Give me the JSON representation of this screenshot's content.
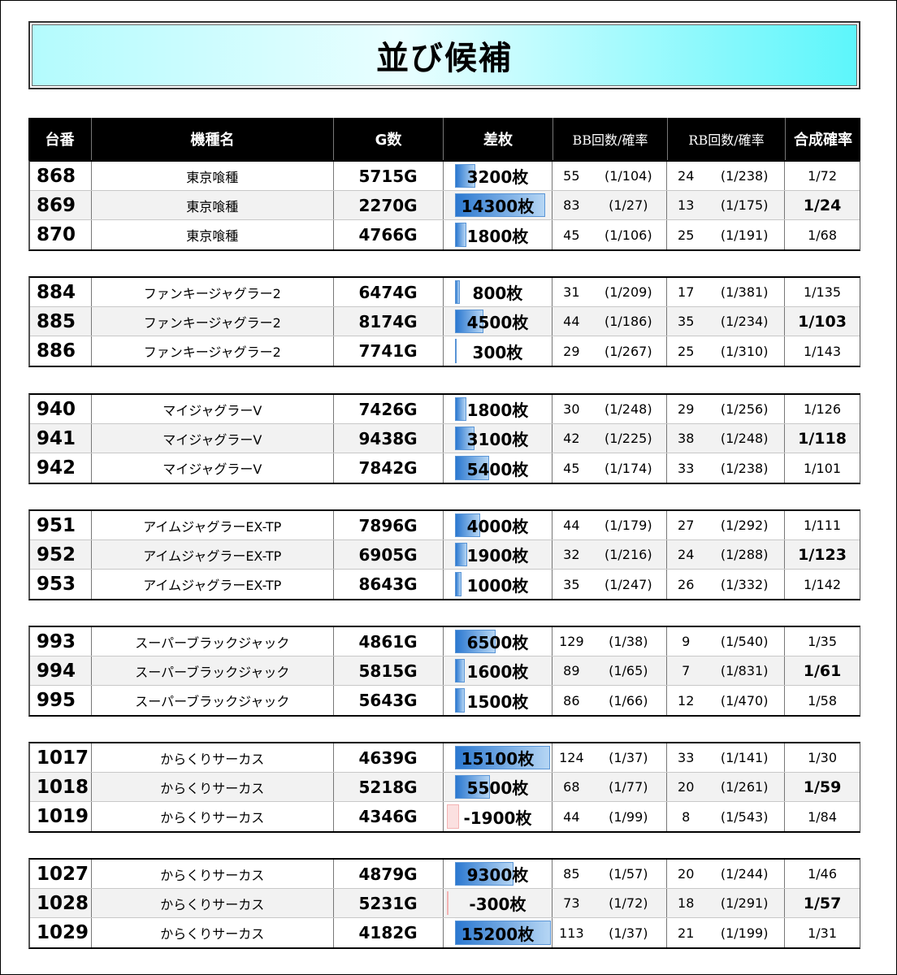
{
  "title": "並び候補",
  "headers": {
    "no": "台番",
    "name": "機種名",
    "games": "G数",
    "diff": "差枚",
    "bb": "BB回数/確率",
    "rb": "RB回数/確率",
    "total": "合成確率"
  },
  "groups": [
    {
      "rows": [
        {
          "no": "868",
          "name": "東京喰種",
          "games": "5715G",
          "diff": "3200枚",
          "diff_value": 3200,
          "bb": "55",
          "bb_prob": "(1/104)",
          "rb": "24",
          "rb_prob": "(1/238)",
          "total": "1/72"
        },
        {
          "no": "869",
          "name": "東京喰種",
          "games": "2270G",
          "diff": "14300枚",
          "diff_value": 14300,
          "bb": "83",
          "bb_prob": "(1/27)",
          "rb": "13",
          "rb_prob": "(1/175)",
          "total": "1/24"
        },
        {
          "no": "870",
          "name": "東京喰種",
          "games": "4766G",
          "diff": "1800枚",
          "diff_value": 1800,
          "bb": "45",
          "bb_prob": "(1/106)",
          "rb": "25",
          "rb_prob": "(1/191)",
          "total": "1/68"
        }
      ]
    },
    {
      "rows": [
        {
          "no": "884",
          "name": "ファンキージャグラー2",
          "games": "6474G",
          "diff": "800枚",
          "diff_value": 800,
          "bb": "31",
          "bb_prob": "(1/209)",
          "rb": "17",
          "rb_prob": "(1/381)",
          "total": "1/135"
        },
        {
          "no": "885",
          "name": "ファンキージャグラー2",
          "games": "8174G",
          "diff": "4500枚",
          "diff_value": 4500,
          "bb": "44",
          "bb_prob": "(1/186)",
          "rb": "35",
          "rb_prob": "(1/234)",
          "total": "1/103"
        },
        {
          "no": "886",
          "name": "ファンキージャグラー2",
          "games": "7741G",
          "diff": "300枚",
          "diff_value": 300,
          "bb": "29",
          "bb_prob": "(1/267)",
          "rb": "25",
          "rb_prob": "(1/310)",
          "total": "1/143"
        }
      ]
    },
    {
      "rows": [
        {
          "no": "940",
          "name": "マイジャグラーV",
          "games": "7426G",
          "diff": "1800枚",
          "diff_value": 1800,
          "bb": "30",
          "bb_prob": "(1/248)",
          "rb": "29",
          "rb_prob": "(1/256)",
          "total": "1/126"
        },
        {
          "no": "941",
          "name": "マイジャグラーV",
          "games": "9438G",
          "diff": "3100枚",
          "diff_value": 3100,
          "bb": "42",
          "bb_prob": "(1/225)",
          "rb": "38",
          "rb_prob": "(1/248)",
          "total": "1/118"
        },
        {
          "no": "942",
          "name": "マイジャグラーV",
          "games": "7842G",
          "diff": "5400枚",
          "diff_value": 5400,
          "bb": "45",
          "bb_prob": "(1/174)",
          "rb": "33",
          "rb_prob": "(1/238)",
          "total": "1/101"
        }
      ]
    },
    {
      "rows": [
        {
          "no": "951",
          "name": "アイムジャグラーEX-TP",
          "games": "7896G",
          "diff": "4000枚",
          "diff_value": 4000,
          "bb": "44",
          "bb_prob": "(1/179)",
          "rb": "27",
          "rb_prob": "(1/292)",
          "total": "1/111"
        },
        {
          "no": "952",
          "name": "アイムジャグラーEX-TP",
          "games": "6905G",
          "diff": "1900枚",
          "diff_value": 1900,
          "bb": "32",
          "bb_prob": "(1/216)",
          "rb": "24",
          "rb_prob": "(1/288)",
          "total": "1/123"
        },
        {
          "no": "953",
          "name": "アイムジャグラーEX-TP",
          "games": "8643G",
          "diff": "1000枚",
          "diff_value": 1000,
          "bb": "35",
          "bb_prob": "(1/247)",
          "rb": "26",
          "rb_prob": "(1/332)",
          "total": "1/142"
        }
      ]
    },
    {
      "rows": [
        {
          "no": "993",
          "name": "スーパーブラックジャック",
          "games": "4861G",
          "diff": "6500枚",
          "diff_value": 6500,
          "bb": "129",
          "bb_prob": "(1/38)",
          "rb": "9",
          "rb_prob": "(1/540)",
          "total": "1/35"
        },
        {
          "no": "994",
          "name": "スーパーブラックジャック",
          "games": "5815G",
          "diff": "1600枚",
          "diff_value": 1600,
          "bb": "89",
          "bb_prob": "(1/65)",
          "rb": "7",
          "rb_prob": "(1/831)",
          "total": "1/61"
        },
        {
          "no": "995",
          "name": "スーパーブラックジャック",
          "games": "5643G",
          "diff": "1500枚",
          "diff_value": 1500,
          "bb": "86",
          "bb_prob": "(1/66)",
          "rb": "12",
          "rb_prob": "(1/470)",
          "total": "1/58"
        }
      ]
    },
    {
      "rows": [
        {
          "no": "1017",
          "name": "からくりサーカス",
          "games": "4639G",
          "diff": "15100枚",
          "diff_value": 15100,
          "bb": "124",
          "bb_prob": "(1/37)",
          "rb": "33",
          "rb_prob": "(1/141)",
          "total": "1/30"
        },
        {
          "no": "1018",
          "name": "からくりサーカス",
          "games": "5218G",
          "diff": "5500枚",
          "diff_value": 5500,
          "bb": "68",
          "bb_prob": "(1/77)",
          "rb": "20",
          "rb_prob": "(1/261)",
          "total": "1/59"
        },
        {
          "no": "1019",
          "name": "からくりサーカス",
          "games": "4346G",
          "diff": "-1900枚",
          "diff_value": -1900,
          "bb": "44",
          "bb_prob": "(1/99)",
          "rb": "8",
          "rb_prob": "(1/543)",
          "total": "1/84"
        }
      ]
    },
    {
      "rows": [
        {
          "no": "1027",
          "name": "からくりサーカス",
          "games": "4879G",
          "diff": "9300枚",
          "diff_value": 9300,
          "bb": "85",
          "bb_prob": "(1/57)",
          "rb": "20",
          "rb_prob": "(1/244)",
          "total": "1/46"
        },
        {
          "no": "1028",
          "name": "からくりサーカス",
          "games": "5231G",
          "diff": "-300枚",
          "diff_value": -300,
          "bb": "73",
          "bb_prob": "(1/72)",
          "rb": "18",
          "rb_prob": "(1/291)",
          "total": "1/57"
        },
        {
          "no": "1029",
          "name": "からくりサーカス",
          "games": "4182G",
          "diff": "15200枚",
          "diff_value": 15200,
          "bb": "113",
          "bb_prob": "(1/37)",
          "rb": "21",
          "rb_prob": "(1/199)",
          "total": "1/31"
        }
      ]
    }
  ]
}
